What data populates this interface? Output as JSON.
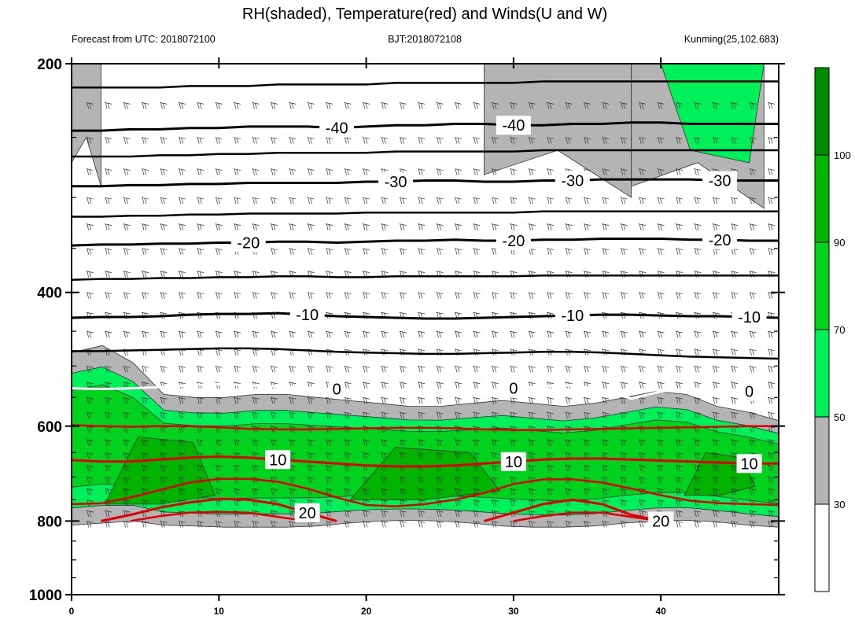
{
  "chart_data": {
    "type": "contour",
    "title": "RH(shaded), Temperature(red) and Winds(U and W)",
    "subtitle_left": "Forecast from UTC: 2018072100",
    "subtitle_center": "BJT:2018072108",
    "subtitle_right": "Kunming(25,102.683)",
    "x_axis": {
      "range": [
        0,
        48
      ],
      "ticks": [
        0,
        10,
        20,
        30,
        40
      ]
    },
    "y_axis": {
      "range": [
        200,
        1000
      ],
      "scale": "log-pressure",
      "inverted": true,
      "ticks": [
        200,
        400,
        600,
        800,
        1000
      ]
    },
    "colorbar": {
      "ticks": [
        30,
        50,
        70,
        90,
        100
      ],
      "levels": [
        {
          "from": 0,
          "to": 30,
          "color": "#ffffff"
        },
        {
          "from": 30,
          "to": 50,
          "color": "#b4b4b4"
        },
        {
          "from": 50,
          "to": 70,
          "color": "#00f05a"
        },
        {
          "from": 70,
          "to": 90,
          "color": "#00d21e"
        },
        {
          "from": 90,
          "to": 100,
          "color": "#00b400"
        },
        {
          "from": 100,
          "to": 110,
          "color": "#008c00"
        }
      ]
    },
    "rh_field": {
      "shading": "RH %",
      "moist_layer_top_hpa": [
        480,
        470,
        495,
        545,
        550,
        550,
        545,
        545,
        550,
        555,
        560,
        565,
        565,
        560,
        555,
        560,
        565,
        560,
        550,
        540,
        545,
        565,
        575,
        590
      ],
      "moist_layer_bottom_hpa": [
        810,
        805,
        800,
        810,
        812,
        815,
        815,
        815,
        812,
        805,
        800,
        798,
        800,
        805,
        812,
        815,
        815,
        812,
        805,
        800,
        798,
        802,
        810,
        815
      ],
      "darkest_core_hpa": [
        [
          620,
          760
        ],
        [
          640,
          750
        ],
        [
          650,
          740
        ]
      ]
    },
    "temperature_contours": [
      {
        "value": -40,
        "color": "#000000",
        "label": "-40",
        "pressures": [
          245,
          245,
          244,
          244,
          243,
          243,
          242,
          242,
          242,
          243,
          242,
          241,
          241,
          240,
          240,
          241,
          241,
          240,
          240,
          239,
          239,
          240,
          240,
          240,
          240
        ]
      },
      {
        "value": -30,
        "color": "#000000",
        "label": "-30",
        "pressures": [
          290,
          290,
          289,
          289,
          288,
          288,
          287,
          287,
          287,
          287,
          286,
          286,
          285,
          285,
          286,
          286,
          285,
          285,
          284,
          284,
          284,
          284,
          285,
          285,
          285
        ]
      },
      {
        "value": -20,
        "color": "#000000",
        "label": "-20",
        "pressures": [
          347,
          346,
          346,
          345,
          345,
          344,
          344,
          343,
          343,
          344,
          343,
          342,
          342,
          341,
          342,
          342,
          341,
          341,
          340,
          340,
          340,
          341,
          341,
          342,
          342
        ]
      },
      {
        "value": -10,
        "color": "#000000",
        "label": "-10",
        "pressures": [
          432,
          431,
          431,
          430,
          428,
          427,
          427,
          426,
          428,
          430,
          431,
          432,
          433,
          433,
          432,
          431,
          430,
          429,
          428,
          428,
          429,
          430,
          430,
          431,
          432
        ]
      },
      {
        "value": 0,
        "color": "#ffffff",
        "label": "0",
        "pressures": [
          535,
          536,
          535,
          533,
          530,
          528,
          530,
          532,
          534,
          536,
          538,
          540,
          541,
          540,
          538,
          535,
          532,
          530,
          538,
          552,
          540,
          535,
          537,
          540,
          542
        ]
      },
      {
        "value": 10,
        "color": "#e00000",
        "label": "10",
        "pressures": [
          665,
          668,
          668,
          664,
          660,
          658,
          660,
          664,
          668,
          672,
          676,
          678,
          678,
          676,
          672,
          668,
          664,
          662,
          662,
          664,
          666,
          668,
          670,
          672,
          672
        ]
      },
      {
        "value": 20,
        "color": "#e00000",
        "label": "20",
        "pressures": [
          null,
          800,
          785,
          768,
          756,
          748,
          750,
          760,
          780,
          800,
          null,
          null,
          null,
          null,
          800,
          780,
          760,
          750,
          760,
          785,
          800,
          null,
          null,
          null,
          null
        ]
      }
    ],
    "other_isotherms_hpa": [
      [
        215,
        215,
        215,
        215,
        214,
        214,
        214,
        213,
        213,
        213,
        213,
        212,
        212,
        212,
        212,
        212,
        211,
        211,
        211,
        211,
        211,
        211,
        211,
        211,
        211
      ],
      [
        265,
        265,
        265,
        264,
        264,
        263,
        263,
        262,
        262,
        262,
        262,
        261,
        261,
        261,
        261,
        261,
        260,
        260,
        260,
        260,
        260,
        260,
        260,
        260,
        260
      ],
      [
        318,
        318,
        317,
        317,
        316,
        316,
        315,
        315,
        315,
        315,
        314,
        314,
        314,
        314,
        314,
        314,
        313,
        313,
        313,
        313,
        313,
        313,
        313,
        313,
        313
      ],
      [
        385,
        384,
        384,
        383,
        383,
        382,
        382,
        381,
        381,
        382,
        382,
        381,
        381,
        381,
        381,
        381,
        380,
        380,
        380,
        380,
        380,
        380,
        380,
        380,
        380
      ],
      [
        478,
        478,
        477,
        476,
        475,
        474,
        474,
        475,
        477,
        479,
        480,
        481,
        482,
        482,
        481,
        480,
        479,
        479,
        480,
        482,
        484,
        486,
        487,
        488,
        489
      ],
      [
        598,
        600,
        601,
        600,
        600,
        602,
        605,
        606,
        606,
        605,
        604,
        603,
        603,
        604,
        606,
        607,
        607,
        606,
        605,
        604,
        603,
        602,
        601,
        600,
        600
      ],
      [
        760,
        758,
        745,
        728,
        712,
        704,
        704,
        710,
        725,
        745,
        762,
        765,
        760,
        750,
        735,
        715,
        705,
        705,
        712,
        725,
        740,
        752,
        758,
        760,
        762
      ],
      [
        null,
        null,
        800,
        788,
        780,
        778,
        780,
        790,
        800,
        null,
        null,
        null,
        null,
        null,
        null,
        800,
        788,
        780,
        780,
        790,
        800,
        null,
        null,
        null,
        null
      ]
    ],
    "winds": "wind barbs (U and W) at each pressure level and hour"
  }
}
